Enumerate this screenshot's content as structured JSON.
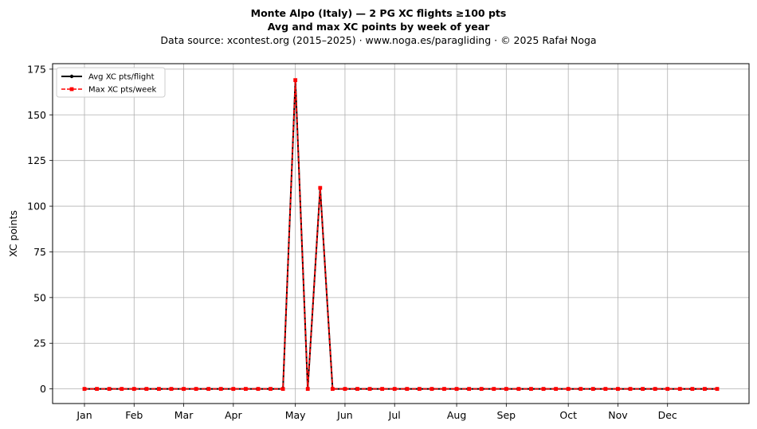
{
  "chart_data": {
    "type": "line",
    "title": "Monte Alpo (Italy)  —  2 PG XC flights ≥100 pts",
    "subtitle": "Avg and max XC points by week of year",
    "source": "Data source: xcontest.org (2015–2025)  ·  www.noga.es/paragliding  ·  © 2025 Rafał Noga",
    "xlabel": "",
    "ylabel": "XC points",
    "weeks": [
      1,
      2,
      3,
      4,
      5,
      6,
      7,
      8,
      9,
      10,
      11,
      12,
      13,
      14,
      15,
      16,
      17,
      18,
      19,
      20,
      21,
      22,
      23,
      24,
      25,
      26,
      27,
      28,
      29,
      30,
      31,
      32,
      33,
      34,
      35,
      36,
      37,
      38,
      39,
      40,
      41,
      42,
      43,
      44,
      45,
      46,
      47,
      48,
      49,
      50,
      51,
      52
    ],
    "month_ticks": [
      {
        "label": "Jan",
        "week": 1
      },
      {
        "label": "Feb",
        "week": 5
      },
      {
        "label": "Mar",
        "week": 9
      },
      {
        "label": "Apr",
        "week": 13
      },
      {
        "label": "May",
        "week": 18
      },
      {
        "label": "Jun",
        "week": 22
      },
      {
        "label": "Jul",
        "week": 26
      },
      {
        "label": "Aug",
        "week": 31
      },
      {
        "label": "Sep",
        "week": 35
      },
      {
        "label": "Oct",
        "week": 40
      },
      {
        "label": "Nov",
        "week": 44
      },
      {
        "label": "Dec",
        "week": 48
      }
    ],
    "ylim": [
      -8,
      178
    ],
    "yticks": [
      0,
      25,
      50,
      75,
      100,
      125,
      150,
      175
    ],
    "grid": true,
    "legend_position": "top-left",
    "series": [
      {
        "name": "Avg XC pts/flight",
        "color": "#000000",
        "style": "solid",
        "marker": "circle",
        "values": [
          0,
          0,
          0,
          0,
          0,
          0,
          0,
          0,
          0,
          0,
          0,
          0,
          0,
          0,
          0,
          0,
          0,
          169,
          0,
          110,
          0,
          0,
          0,
          0,
          0,
          0,
          0,
          0,
          0,
          0,
          0,
          0,
          0,
          0,
          0,
          0,
          0,
          0,
          0,
          0,
          0,
          0,
          0,
          0,
          0,
          0,
          0,
          0,
          0,
          0,
          0,
          0
        ]
      },
      {
        "name": "Max XC pts/week",
        "color": "#ff0000",
        "style": "dashed",
        "marker": "square",
        "values": [
          0,
          0,
          0,
          0,
          0,
          0,
          0,
          0,
          0,
          0,
          0,
          0,
          0,
          0,
          0,
          0,
          0,
          169,
          0,
          110,
          0,
          0,
          0,
          0,
          0,
          0,
          0,
          0,
          0,
          0,
          0,
          0,
          0,
          0,
          0,
          0,
          0,
          0,
          0,
          0,
          0,
          0,
          0,
          0,
          0,
          0,
          0,
          0,
          0,
          0,
          0,
          0
        ]
      }
    ]
  }
}
